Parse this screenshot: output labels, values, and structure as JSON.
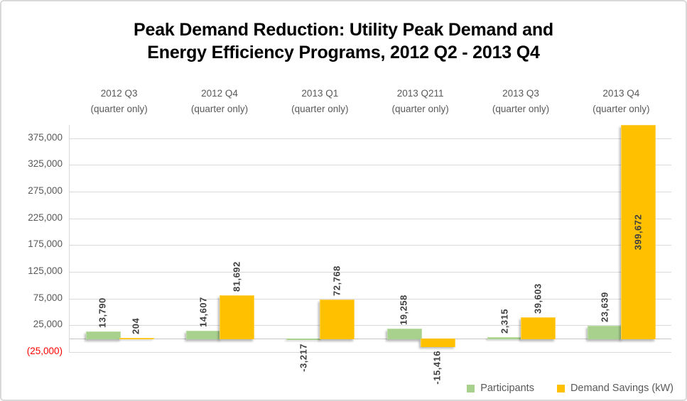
{
  "chart_data": {
    "type": "bar",
    "title": "Peak Demand Reduction: Utility Peak Demand and Energy Efficiency Programs, 2012 Q2 - 2013 Q4",
    "title_lines": [
      "Peak Demand Reduction: Utility Peak Demand and",
      "Energy Efficiency Programs, 2012 Q2 - 2013 Q4"
    ],
    "categories": [
      "2012 Q3",
      "2012 Q4",
      "2013 Q1",
      "2013 Q211",
      "2013 Q3",
      "2013 Q4"
    ],
    "category_sublabel": "(quarter only)",
    "series": [
      {
        "name": "Participants",
        "color": "#a9d18e",
        "values": [
          13790,
          14607,
          -3217,
          19258,
          2315,
          23639
        ],
        "labels": [
          "13,790",
          "14,607",
          "-3,217",
          "19,258",
          "2,315",
          "23,639"
        ]
      },
      {
        "name": "Demand Savings (kW)",
        "color": "#ffc000",
        "values": [
          204,
          81692,
          72768,
          -15416,
          39603,
          399672
        ],
        "labels": [
          "204",
          "81,692",
          "72,768",
          "-15,416",
          "39,603",
          "399,672"
        ]
      }
    ],
    "yticks": [
      {
        "value": 375000,
        "label": "375,000"
      },
      {
        "value": 325000,
        "label": "325,000"
      },
      {
        "value": 275000,
        "label": "275,000"
      },
      {
        "value": 225000,
        "label": "225,000"
      },
      {
        "value": 175000,
        "label": "175,000"
      },
      {
        "value": 125000,
        "label": "125,000"
      },
      {
        "value": 75000,
        "label": "75,000"
      },
      {
        "value": 25000,
        "label": "25,000"
      },
      {
        "value": -25000,
        "label": "(25,000)",
        "negative": true
      }
    ],
    "ylim": [
      -25000,
      400000
    ],
    "grid": true,
    "legend_position": "bottom-right",
    "xlabel": "",
    "ylabel": ""
  },
  "colors": {
    "participants": "#a9d18e",
    "demand_savings": "#ffc000",
    "axis_text": "#595959",
    "bar_label_text": "#404040",
    "negative_tick_text": "#ff0000",
    "gridline": "#d9d9d9",
    "title_text": "#000000"
  }
}
